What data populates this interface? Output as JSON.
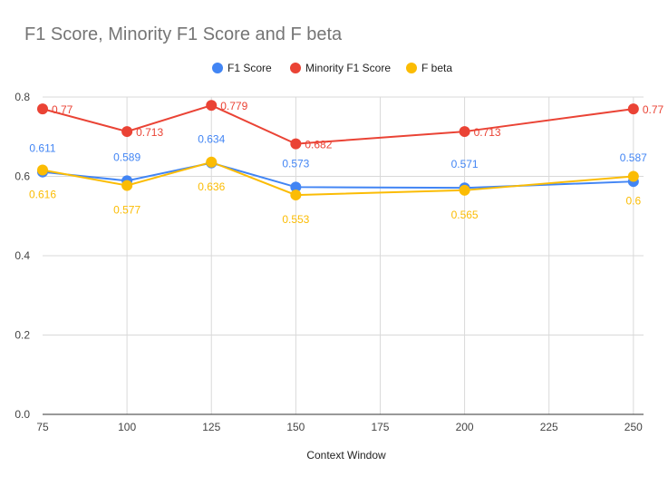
{
  "chart_data": {
    "type": "line",
    "title": "F1 Score, Minority F1 Score and F beta",
    "xlabel": "Context Window",
    "ylabel": "",
    "x": [
      75,
      125,
      150,
      200,
      250,
      100
    ],
    "x_sorted": [
      75,
      100,
      125,
      150,
      200,
      250
    ],
    "xlim": [
      75,
      255
    ],
    "ylim": [
      0,
      0.8
    ],
    "x_ticks": [
      "75",
      "100",
      "125",
      "150",
      "175",
      "200",
      "225",
      "250"
    ],
    "y_ticks": [
      "0.0",
      "0.2",
      "0.4",
      "0.6",
      "0.8"
    ],
    "grid": true,
    "legend_position": "top",
    "series": [
      {
        "name": "F1 Score",
        "color": "#4285F4",
        "x": [
          75,
          100,
          125,
          150,
          200,
          250
        ],
        "values": [
          0.611,
          0.589,
          0.634,
          0.573,
          0.571,
          0.587
        ],
        "labels": [
          "0.611",
          "0.589",
          "0.634",
          "0.573",
          "0.571",
          "0.587"
        ]
      },
      {
        "name": "Minority F1 Score",
        "color": "#EA4335",
        "x": [
          75,
          100,
          125,
          150,
          200,
          250
        ],
        "values": [
          0.77,
          0.713,
          0.779,
          0.682,
          0.713,
          0.77
        ],
        "labels": [
          "0.77",
          "0.713",
          "0.779",
          "0.682",
          "0.713",
          "0.77"
        ]
      },
      {
        "name": "F beta",
        "color": "#FBBC04",
        "x": [
          75,
          100,
          125,
          150,
          200,
          250
        ],
        "values": [
          0.616,
          0.577,
          0.636,
          0.553,
          0.565,
          0.6
        ],
        "labels": [
          "0.616",
          "0.577",
          "0.636",
          "0.553",
          "0.565",
          "0.6"
        ]
      }
    ]
  }
}
